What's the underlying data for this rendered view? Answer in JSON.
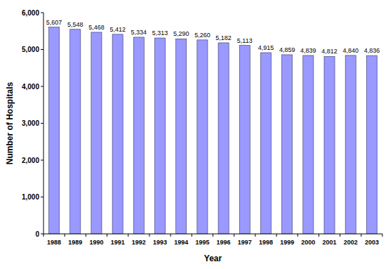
{
  "chart_data": {
    "type": "bar",
    "x_label": "Year",
    "y_label": "Number of Hospitals",
    "categories": [
      "1988",
      "1989",
      "1990",
      "1991",
      "1992",
      "1993",
      "1994",
      "1995",
      "1996",
      "1997",
      "1998",
      "1999",
      "2000",
      "2001",
      "2002",
      "2003"
    ],
    "values": [
      5607,
      5548,
      5468,
      5412,
      5334,
      5313,
      5290,
      5260,
      5182,
      5113,
      4915,
      4859,
      4839,
      4812,
      4840,
      4836
    ],
    "value_labels": [
      "5,607",
      "5,548",
      "5,468",
      "5,412",
      "5,334",
      "5,313",
      "5,290",
      "5,260",
      "5,182",
      "5,113",
      "4,915",
      "4,859",
      "4,839",
      "4,812",
      "4,840",
      "4,836"
    ],
    "data_labels": true,
    "color": "#9999ff",
    "ylim": [
      0,
      6000
    ],
    "yticks": [
      0,
      {
        "value": 1000,
        "label": "1,000"
      },
      {
        "value": 2000,
        "label": "2,000"
      },
      {
        "value": 3000,
        "label": "3,000"
      },
      {
        "value": 4000,
        "label": "4,000"
      },
      {
        "value": 5000,
        "label": "5,000"
      },
      {
        "value": 6000,
        "label": "6,000"
      }
    ],
    "grid": false
  }
}
